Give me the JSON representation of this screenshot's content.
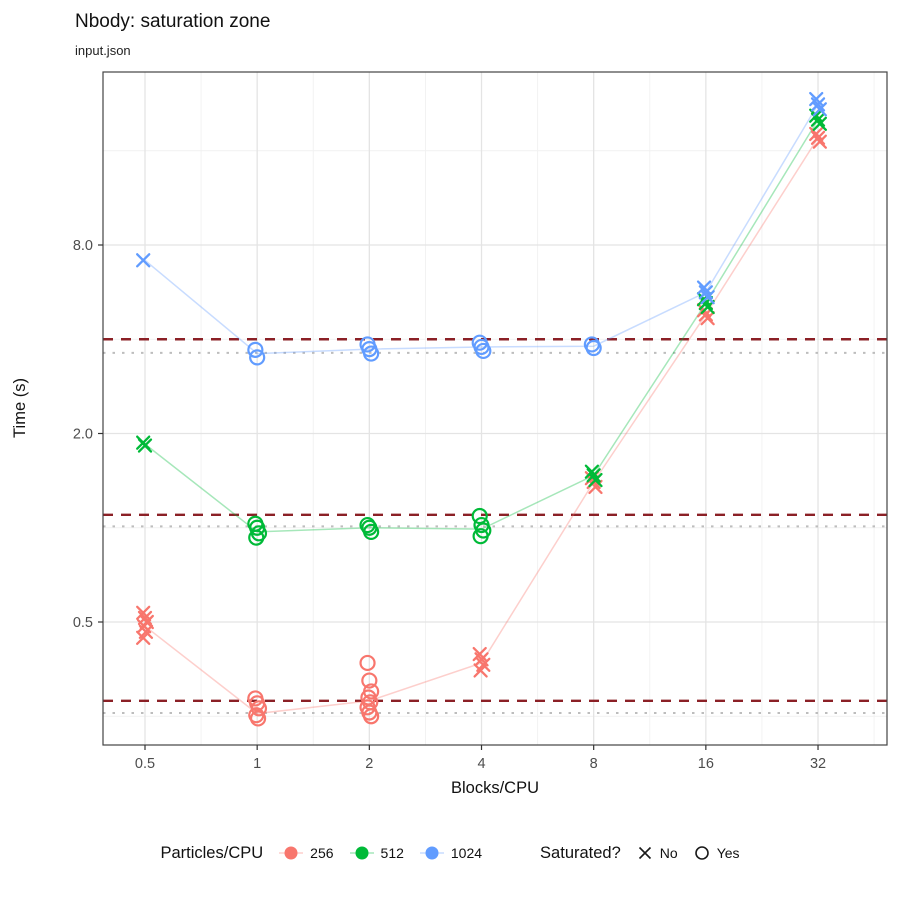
{
  "chart_data": {
    "type": "scatter",
    "title": "Nbody: saturation zone",
    "subtitle": "input.json",
    "xlabel": "Blocks/CPU",
    "ylabel": "Time (s)",
    "x_scale": "log2",
    "y_scale": "log2",
    "x_ticks": [
      0.5,
      1,
      2,
      4,
      8,
      16,
      32
    ],
    "x_tick_labels": [
      "0.5",
      "1",
      "2",
      "4",
      "8",
      "16",
      "32"
    ],
    "y_ticks": [
      0.5,
      2.0,
      8.0
    ],
    "y_tick_labels": [
      "0.5",
      "2.0",
      "8.0"
    ],
    "y_domain": [
      0.2,
      28
    ],
    "grid": true,
    "legend_position": "bottom",
    "colors": {
      "major_grid": "#e4e4e4",
      "minor_grid": "#f1f1f1",
      "panel_border": "#444444",
      "threshold": "#8B2026",
      "baseline": "#bdbdbd"
    },
    "thresholds": {
      "style": "dashed",
      "color": "#8B2026",
      "values": [
        4.0,
        1.1,
        0.28
      ]
    },
    "baselines": {
      "style": "dotted",
      "color": "#bdbdbd",
      "values": [
        3.62,
        1.01,
        0.256
      ]
    },
    "legend": {
      "color": {
        "title": "Particles/CPU",
        "entries": [
          {
            "label": "256",
            "color": "#F8766D"
          },
          {
            "label": "512",
            "color": "#00BA38"
          },
          {
            "label": "1024",
            "color": "#619CFF"
          }
        ]
      },
      "shape": {
        "title": "Saturated?",
        "entries": [
          {
            "label": "No",
            "shape": "x"
          },
          {
            "label": "Yes",
            "shape": "circle"
          }
        ]
      }
    },
    "series": [
      {
        "name": "256",
        "color": "#F8766D",
        "clusters": [
          {
            "x": 0.5,
            "saturated": false,
            "times": [
              0.535,
              0.515,
              0.5,
              0.485,
              0.465,
              0.445
            ]
          },
          {
            "x": 1,
            "saturated": true,
            "times": [
              0.285,
              0.275,
              0.265,
              0.252,
              0.246
            ]
          },
          {
            "x": 2,
            "saturated": true,
            "times": [
              0.37,
              0.325,
              0.3,
              0.287,
              0.277,
              0.267,
              0.257,
              0.25
            ]
          },
          {
            "x": 4,
            "saturated": false,
            "times": [
              0.395,
              0.38,
              0.365,
              0.35
            ]
          },
          {
            "x": 8,
            "saturated": false,
            "times": [
              1.44,
              1.4,
              1.35
            ]
          },
          {
            "x": 16,
            "saturated": false,
            "times": [
              4.95,
              4.8,
              4.67
            ]
          },
          {
            "x": 32,
            "saturated": false,
            "times": [
              18.1,
              17.6,
              17.1
            ]
          }
        ],
        "trend": [
          0.485,
          0.255,
          0.28,
          0.37,
          1.4,
          4.8,
          17.6
        ]
      },
      {
        "name": "512",
        "color": "#00BA38",
        "clusters": [
          {
            "x": 0.5,
            "saturated": false,
            "times": [
              1.87,
              1.83
            ]
          },
          {
            "x": 1,
            "saturated": true,
            "times": [
              1.03,
              1.0,
              0.96,
              0.93
            ]
          },
          {
            "x": 2,
            "saturated": true,
            "times": [
              1.02,
              1.0,
              0.97
            ]
          },
          {
            "x": 4,
            "saturated": true,
            "times": [
              1.09,
              1.02,
              0.98,
              0.94
            ]
          },
          {
            "x": 8,
            "saturated": false,
            "times": [
              1.51,
              1.47,
              1.42
            ]
          },
          {
            "x": 16,
            "saturated": false,
            "times": [
              5.37,
              5.22,
              5.07
            ]
          },
          {
            "x": 32,
            "saturated": false,
            "times": [
              20.7,
              20.1,
              19.5
            ]
          }
        ],
        "trend": [
          1.85,
          0.97,
          1.0,
          0.99,
          1.47,
          5.22,
          20.1
        ]
      },
      {
        "name": "1024",
        "color": "#619CFF",
        "clusters": [
          {
            "x": 0.5,
            "saturated": false,
            "times": [
              7.15
            ]
          },
          {
            "x": 1,
            "saturated": true,
            "times": [
              3.7,
              3.5
            ]
          },
          {
            "x": 2,
            "saturated": true,
            "times": [
              3.85,
              3.72,
              3.6
            ]
          },
          {
            "x": 4,
            "saturated": true,
            "times": [
              3.9,
              3.78,
              3.67
            ]
          },
          {
            "x": 8,
            "saturated": true,
            "times": [
              3.85,
              3.75
            ]
          },
          {
            "x": 16,
            "saturated": false,
            "times": [
              5.85,
              5.65,
              5.45
            ]
          },
          {
            "x": 32,
            "saturated": false,
            "times": [
              23.4,
              22.5,
              21.7
            ]
          }
        ],
        "trend": [
          7.15,
          3.6,
          3.72,
          3.78,
          3.8,
          5.65,
          22.5
        ]
      }
    ]
  }
}
